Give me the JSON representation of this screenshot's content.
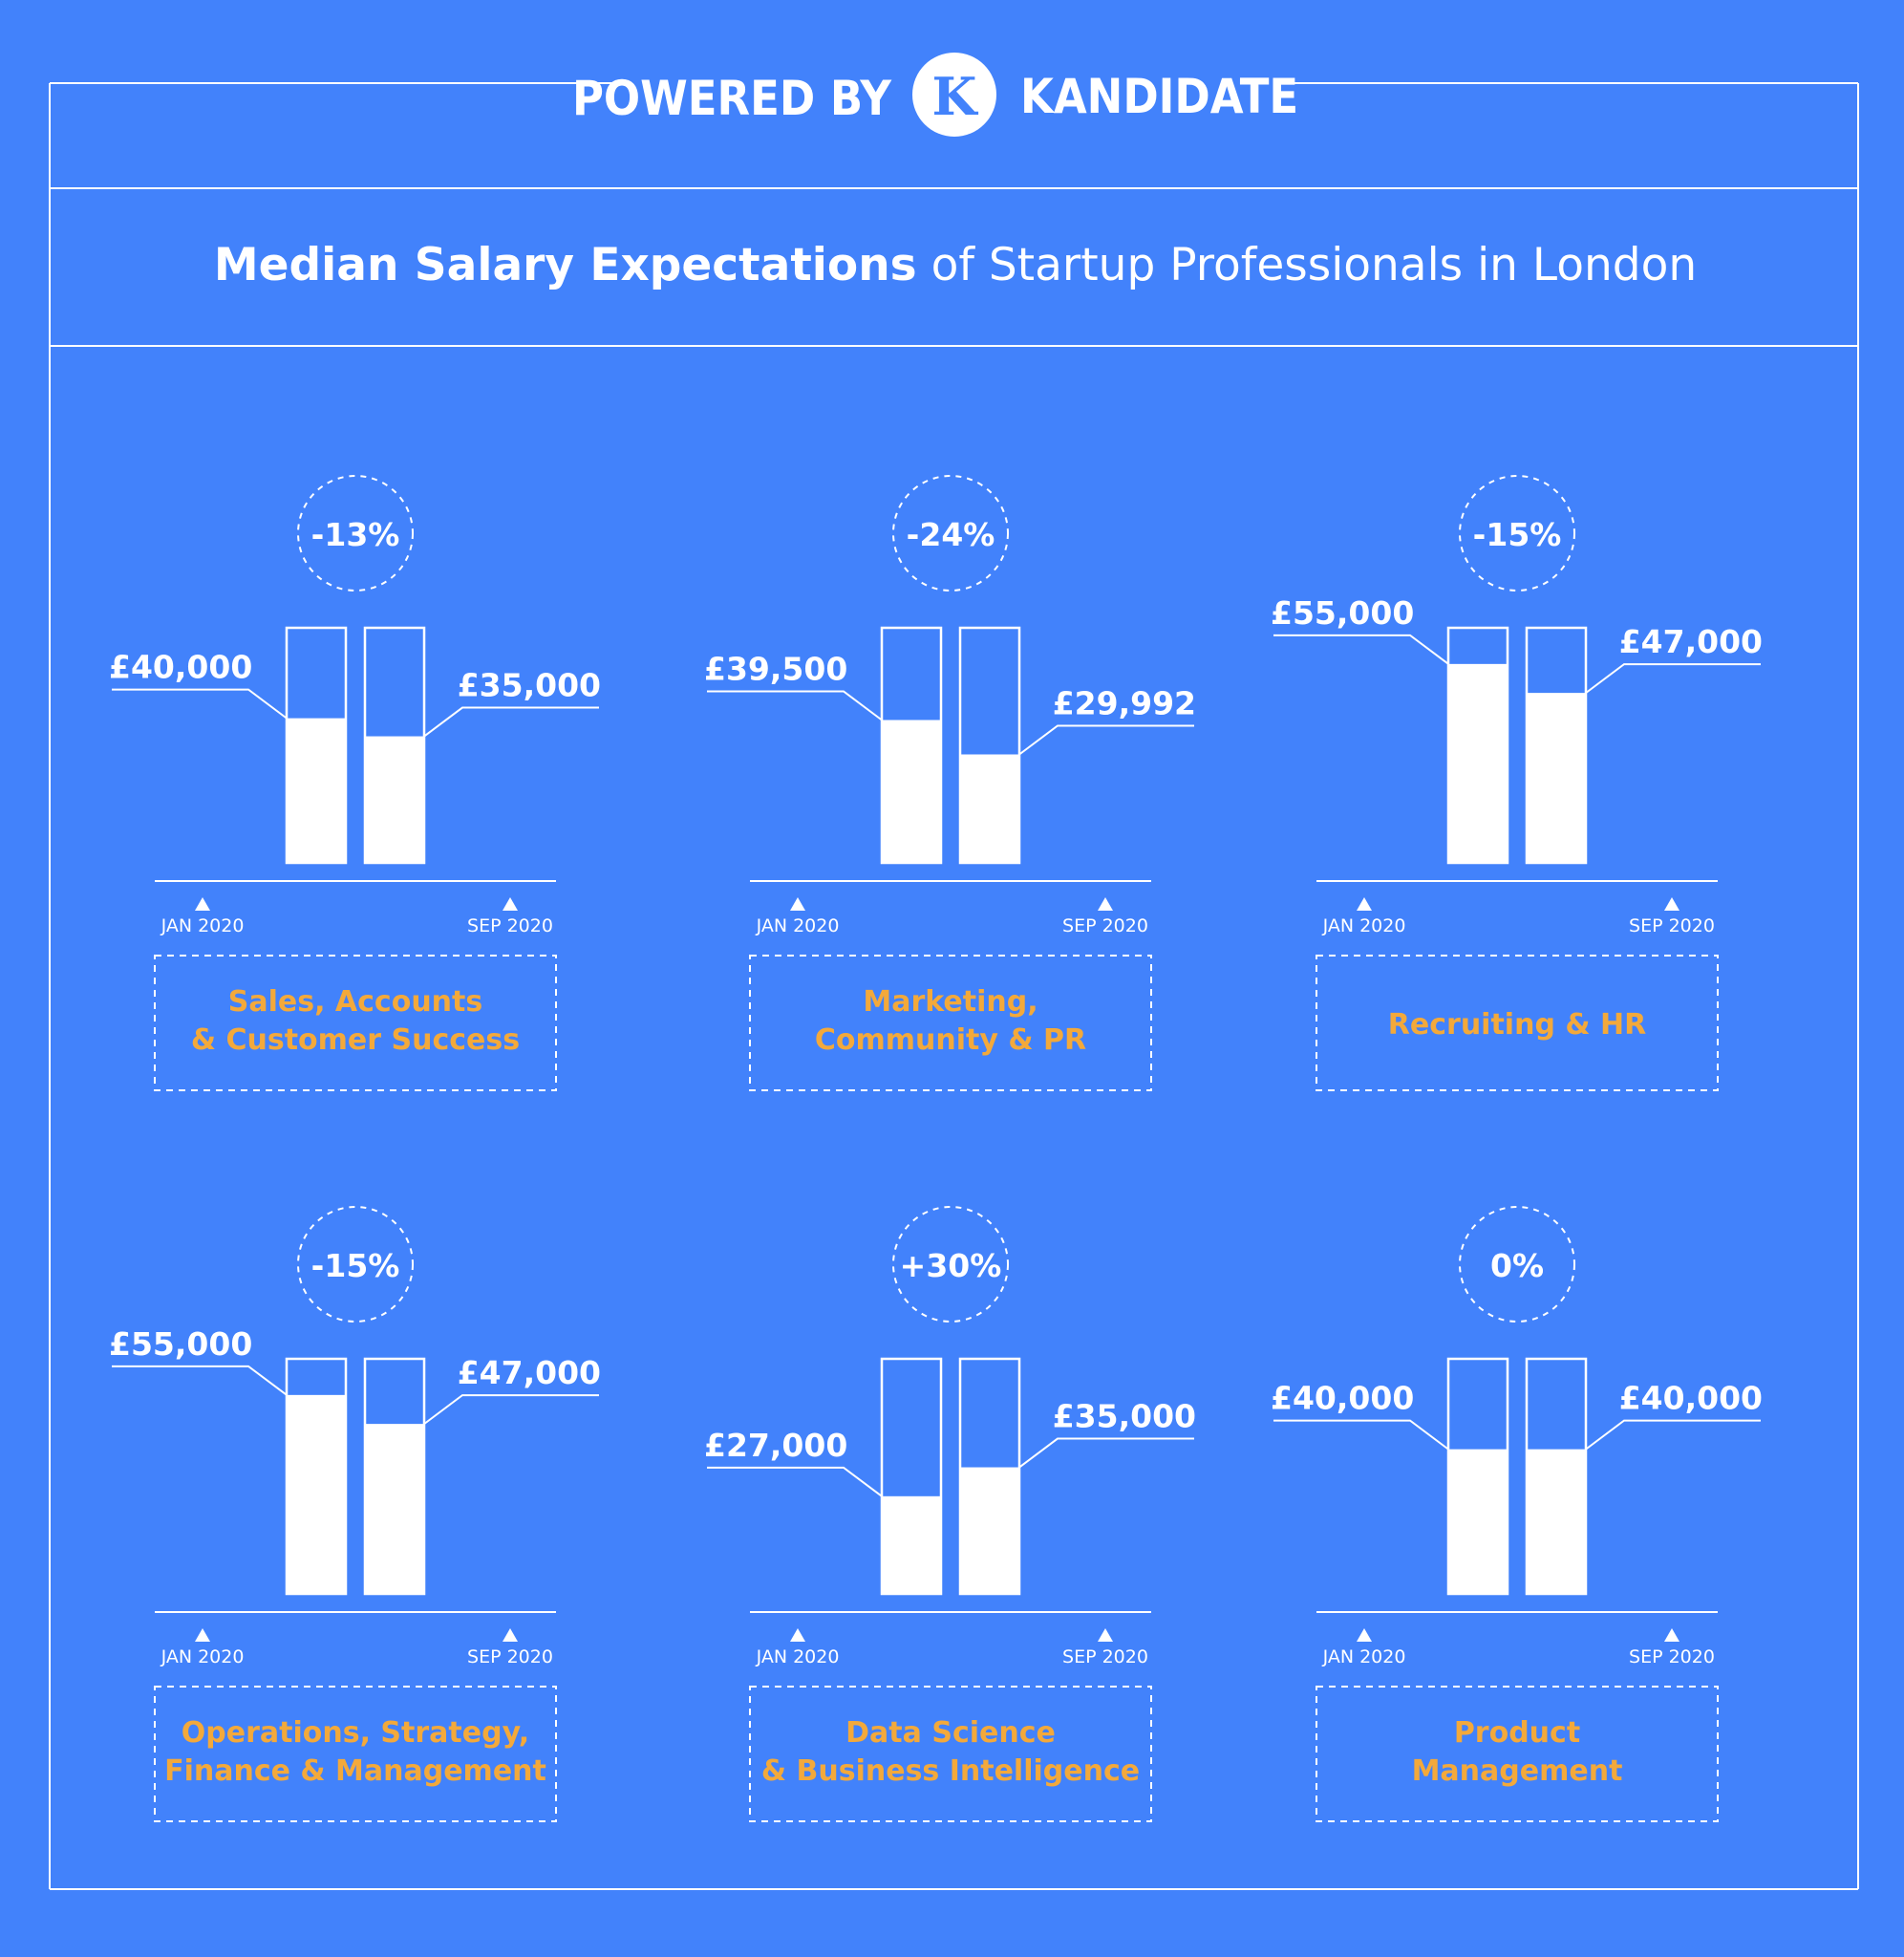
{
  "header": {
    "powered_by": "POWERED BY",
    "logo_letter": "K",
    "brand": "KANDIDATE"
  },
  "title": {
    "bold": "Median Salary Expectations",
    "regular": "of Startup Professionals in London"
  },
  "colors": {
    "background": "#4282fb",
    "foreground": "#ffffff",
    "category_label": "#f3a93b"
  },
  "chart_data": [
    {
      "type": "bar",
      "category": [
        "Sales, Accounts",
        "& Customer Success"
      ],
      "change": "-13%",
      "periods": [
        "JAN 2020",
        "SEP 2020"
      ],
      "value_labels": [
        "£40,000",
        "£35,000"
      ],
      "values": [
        40000,
        35000
      ]
    },
    {
      "type": "bar",
      "category": [
        "Marketing,",
        "Community & PR"
      ],
      "change": "-24%",
      "periods": [
        "JAN 2020",
        "SEP 2020"
      ],
      "value_labels": [
        "£39,500",
        "£29,992"
      ],
      "values": [
        39500,
        29992
      ]
    },
    {
      "type": "bar",
      "category": [
        "Recruiting & HR"
      ],
      "change": "-15%",
      "periods": [
        "JAN 2020",
        "SEP 2020"
      ],
      "value_labels": [
        "£55,000",
        "£47,000"
      ],
      "values": [
        55000,
        47000
      ]
    },
    {
      "type": "bar",
      "category": [
        "Operations, Strategy,",
        "Finance & Management"
      ],
      "change": "-15%",
      "periods": [
        "JAN 2020",
        "SEP 2020"
      ],
      "value_labels": [
        "£55,000",
        "£47,000"
      ],
      "values": [
        55000,
        47000
      ]
    },
    {
      "type": "bar",
      "category": [
        "Data Science",
        "& Business Intelligence"
      ],
      "change": "+30%",
      "periods": [
        "JAN 2020",
        "SEP 2020"
      ],
      "value_labels": [
        "£27,000",
        "£35,000"
      ],
      "values": [
        27000,
        35000
      ]
    },
    {
      "type": "bar",
      "category": [
        "Product",
        "Management"
      ],
      "change": "0%",
      "periods": [
        "JAN 2020",
        "SEP 2020"
      ],
      "value_labels": [
        "£40,000",
        "£40,000"
      ],
      "values": [
        40000,
        40000
      ]
    }
  ]
}
